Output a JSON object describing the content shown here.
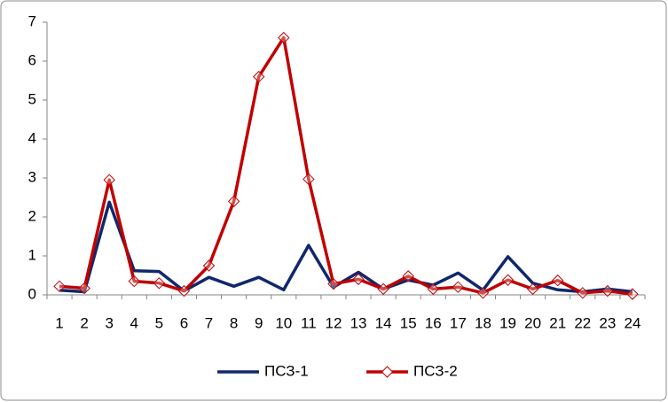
{
  "chart_data": {
    "type": "line",
    "categories": [
      "1",
      "2",
      "3",
      "4",
      "5",
      "6",
      "7",
      "8",
      "9",
      "10",
      "11",
      "12",
      "13",
      "14",
      "15",
      "16",
      "17",
      "18",
      "19",
      "20",
      "21",
      "22",
      "23",
      "24"
    ],
    "series": [
      {
        "name": "ПСЗ-1",
        "color": "#10286b",
        "values": [
          0.12,
          0.08,
          2.38,
          0.62,
          0.6,
          0.1,
          0.45,
          0.22,
          0.45,
          0.13,
          1.27,
          0.2,
          0.58,
          0.15,
          0.38,
          0.25,
          0.56,
          0.12,
          0.98,
          0.3,
          0.13,
          0.08,
          0.15,
          0.08
        ]
      },
      {
        "name": "ПСЗ-2",
        "color": "#c00000",
        "marker": "diamond",
        "values": [
          0.22,
          0.17,
          2.95,
          0.35,
          0.3,
          0.1,
          0.75,
          2.4,
          5.6,
          6.6,
          2.97,
          0.28,
          0.4,
          0.15,
          0.48,
          0.15,
          0.2,
          0.05,
          0.38,
          0.15,
          0.37,
          0.05,
          0.1,
          0.02
        ]
      }
    ],
    "ylim": [
      0,
      7
    ],
    "yticks": [
      0,
      1,
      2,
      3,
      4,
      5,
      6,
      7
    ],
    "grid": false,
    "legend": "bottom"
  }
}
